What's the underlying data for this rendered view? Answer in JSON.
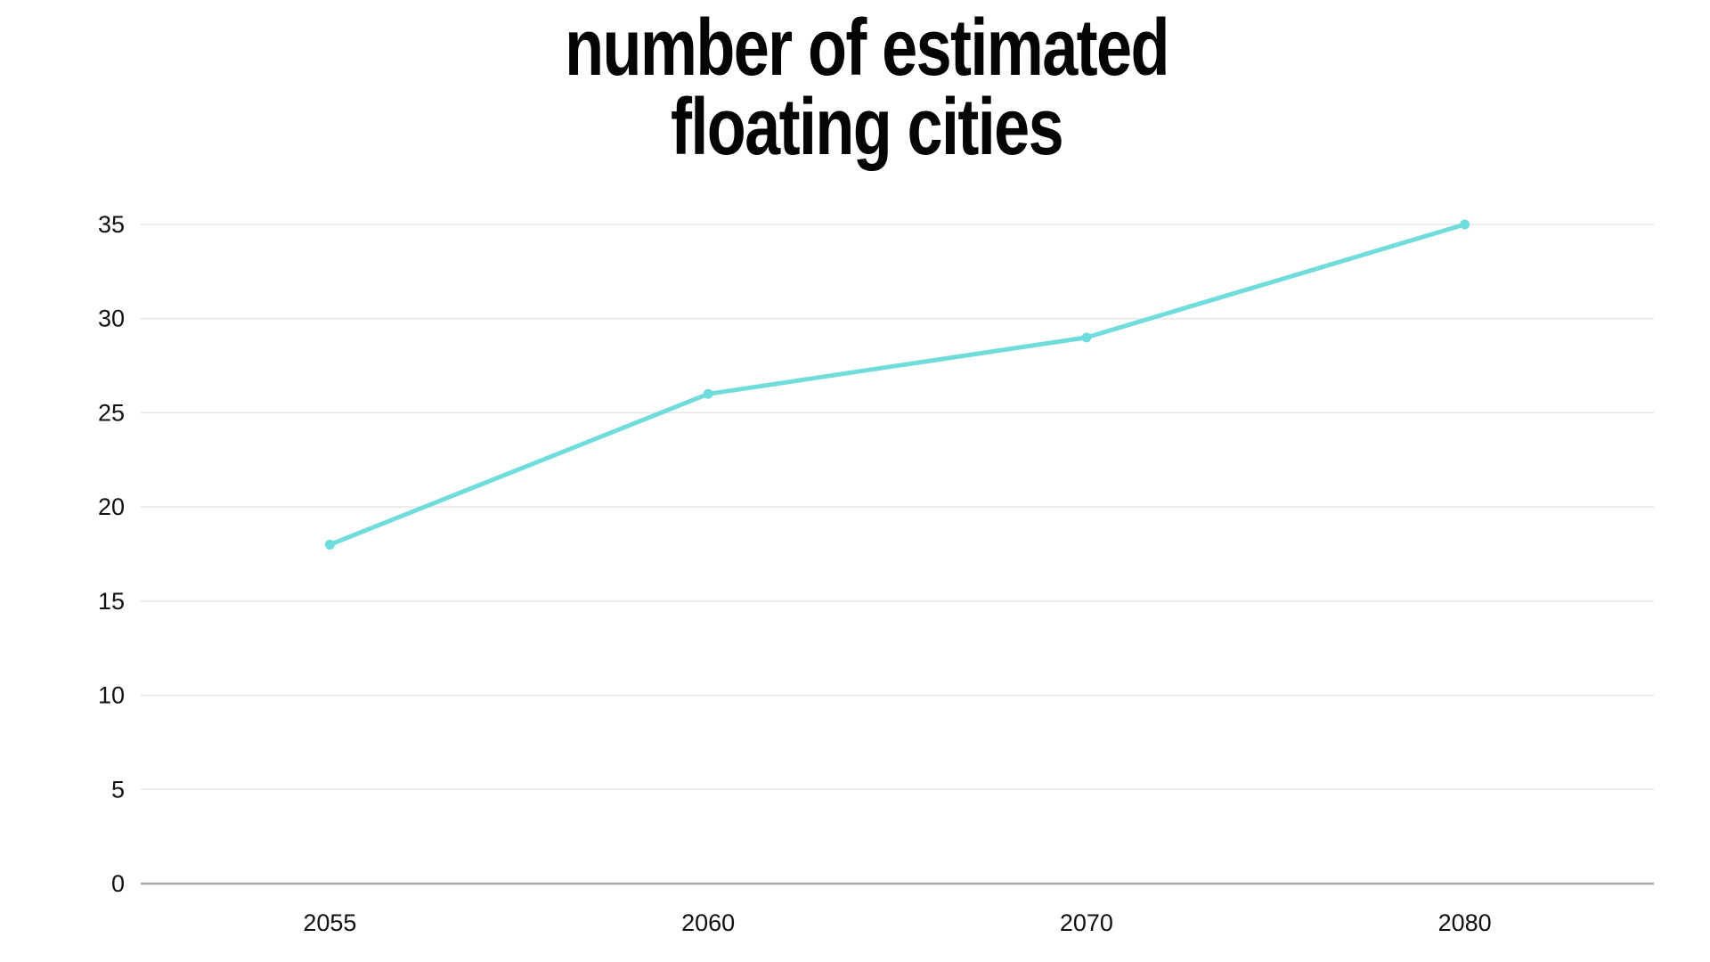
{
  "chart_data": {
    "type": "line",
    "title": "number of estimated floating cities",
    "title_lines": [
      "number of estimated",
      "floating cities"
    ],
    "categories": [
      "2055",
      "2060",
      "2070",
      "2080"
    ],
    "series": [
      {
        "name": "estimated floating cities",
        "values": [
          18,
          26,
          29,
          35
        ]
      }
    ],
    "xlabel": "",
    "ylabel": "",
    "ylim": [
      0,
      35
    ],
    "y_ticks": [
      0,
      5,
      10,
      15,
      20,
      25,
      30,
      35
    ],
    "grid": true,
    "legend": false,
    "colors": {
      "line": "#70dcdb",
      "marker": "#6edddd",
      "grid": "#e7e7e7",
      "zero_axis": "#ababab",
      "tick_text": "#111111",
      "title_text": "#050505",
      "background": "#ffffff"
    }
  }
}
